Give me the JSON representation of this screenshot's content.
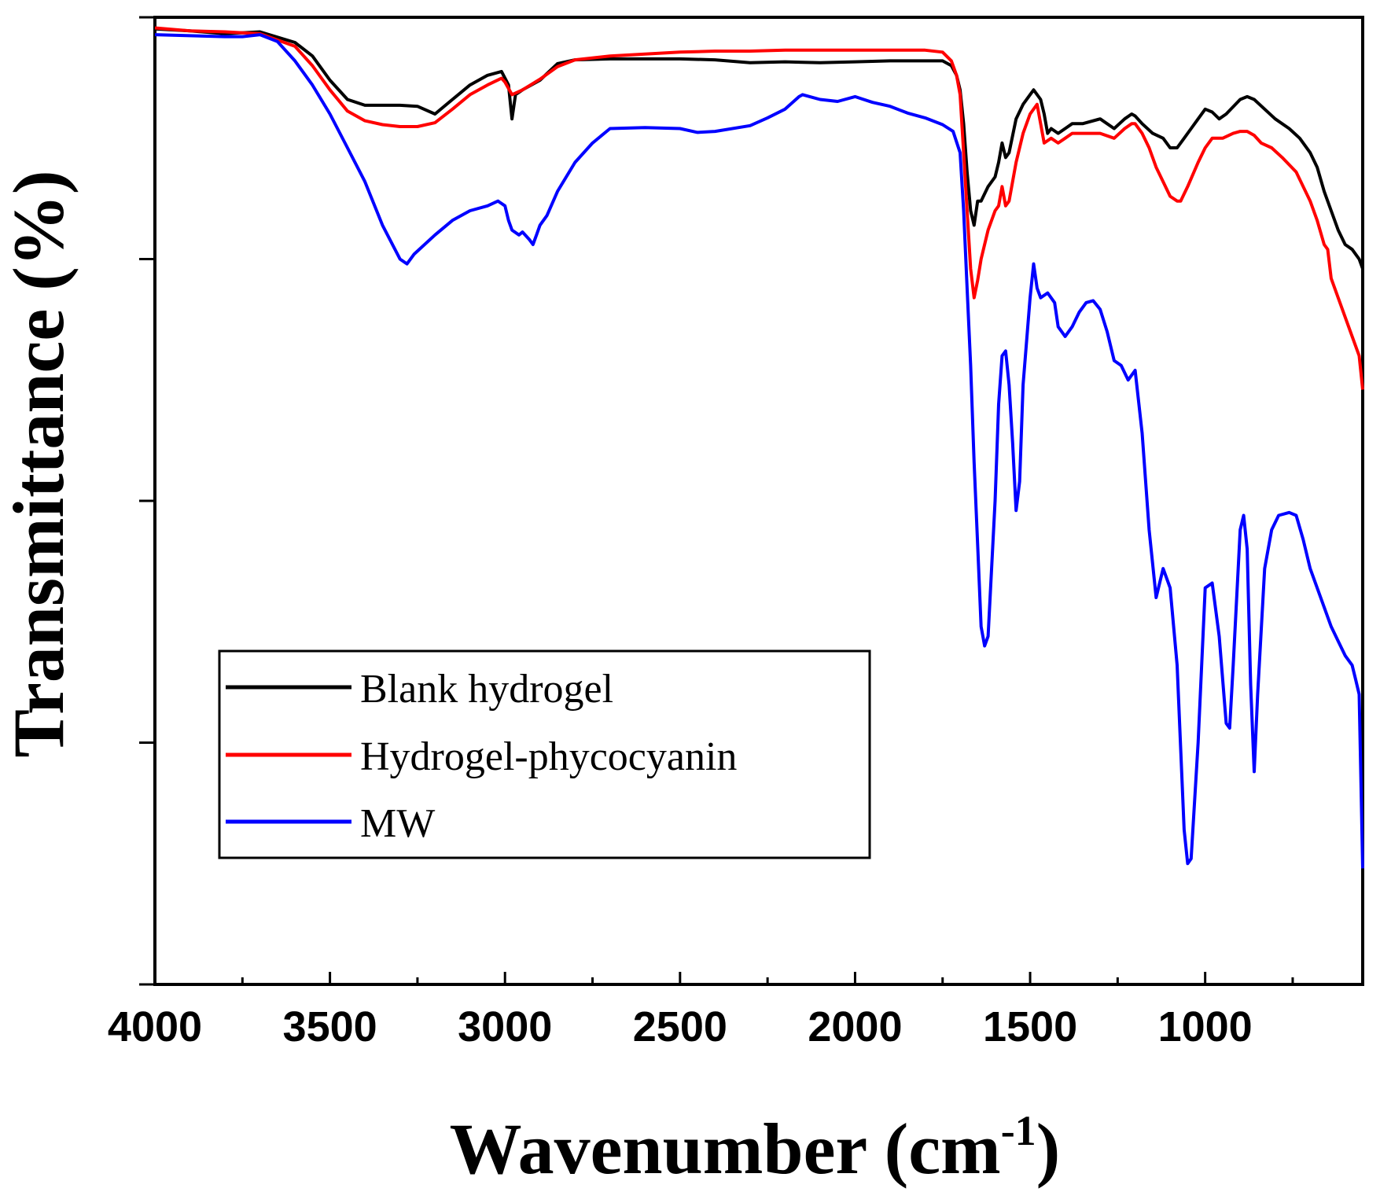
{
  "chart_data": {
    "type": "line",
    "title": "",
    "xlabel": "Wavenumber (cm",
    "xlabel_sup": "-1",
    "xlabel_close": ")",
    "ylabel": "Transmittance (%)",
    "xlim": [
      4000,
      550
    ],
    "ylim": [
      0,
      100
    ],
    "x_reversed": true,
    "x_ticks": [
      4000,
      3500,
      3000,
      2500,
      2000,
      1500,
      1000
    ],
    "x_tick_labels": [
      "4000",
      "3500",
      "3000",
      "2500",
      "2000",
      "1500",
      "1000"
    ],
    "y_ticks": [
      0,
      25,
      50,
      75,
      100
    ],
    "y_tick_labels_shown": false,
    "grid": false,
    "legend_position": "lower-left",
    "series": [
      {
        "name": "Blank hydrogel",
        "color": "#000000",
        "points": [
          [
            4000,
            98.8
          ],
          [
            3900,
            98.6
          ],
          [
            3800,
            98.3
          ],
          [
            3700,
            98.5
          ],
          [
            3600,
            97.4
          ],
          [
            3550,
            96
          ],
          [
            3500,
            93.5
          ],
          [
            3450,
            91.5
          ],
          [
            3400,
            90.9
          ],
          [
            3350,
            90.9
          ],
          [
            3300,
            90.9
          ],
          [
            3250,
            90.8
          ],
          [
            3200,
            90
          ],
          [
            3150,
            91.5
          ],
          [
            3100,
            93
          ],
          [
            3050,
            94
          ],
          [
            3010,
            94.4
          ],
          [
            2990,
            93
          ],
          [
            2980,
            89.5
          ],
          [
            2970,
            92
          ],
          [
            2950,
            92.5
          ],
          [
            2900,
            93.5
          ],
          [
            2850,
            95.2
          ],
          [
            2800,
            95.6
          ],
          [
            2700,
            95.7
          ],
          [
            2600,
            95.7
          ],
          [
            2500,
            95.7
          ],
          [
            2400,
            95.6
          ],
          [
            2300,
            95.3
          ],
          [
            2200,
            95.4
          ],
          [
            2100,
            95.3
          ],
          [
            2000,
            95.4
          ],
          [
            1900,
            95.5
          ],
          [
            1800,
            95.5
          ],
          [
            1750,
            95.5
          ],
          [
            1725,
            95
          ],
          [
            1710,
            94
          ],
          [
            1700,
            92.5
          ],
          [
            1690,
            89
          ],
          [
            1680,
            84
          ],
          [
            1670,
            80
          ],
          [
            1660,
            78.5
          ],
          [
            1650,
            81
          ],
          [
            1640,
            81
          ],
          [
            1620,
            82.5
          ],
          [
            1600,
            83.5
          ],
          [
            1590,
            85
          ],
          [
            1580,
            87
          ],
          [
            1570,
            85.5
          ],
          [
            1560,
            86
          ],
          [
            1540,
            89.5
          ],
          [
            1520,
            91
          ],
          [
            1500,
            92
          ],
          [
            1490,
            92.5
          ],
          [
            1470,
            91.5
          ],
          [
            1460,
            90
          ],
          [
            1450,
            88
          ],
          [
            1440,
            88.5
          ],
          [
            1420,
            88
          ],
          [
            1400,
            88.5
          ],
          [
            1380,
            89
          ],
          [
            1350,
            89
          ],
          [
            1300,
            89.5
          ],
          [
            1260,
            88.5
          ],
          [
            1230,
            89.5
          ],
          [
            1210,
            90
          ],
          [
            1200,
            89.8
          ],
          [
            1180,
            89
          ],
          [
            1150,
            88
          ],
          [
            1120,
            87.5
          ],
          [
            1100,
            86.5
          ],
          [
            1080,
            86.5
          ],
          [
            1060,
            87.5
          ],
          [
            1040,
            88.5
          ],
          [
            1020,
            89.5
          ],
          [
            1000,
            90.5
          ],
          [
            980,
            90.2
          ],
          [
            960,
            89.5
          ],
          [
            940,
            90
          ],
          [
            900,
            91.5
          ],
          [
            880,
            91.8
          ],
          [
            860,
            91.5
          ],
          [
            830,
            90.5
          ],
          [
            800,
            89.5
          ],
          [
            760,
            88.5
          ],
          [
            730,
            87.5
          ],
          [
            700,
            86
          ],
          [
            680,
            84.5
          ],
          [
            660,
            82
          ],
          [
            640,
            80
          ],
          [
            620,
            78
          ],
          [
            600,
            76.5
          ],
          [
            580,
            76
          ],
          [
            560,
            75
          ],
          [
            550,
            74
          ]
        ]
      },
      {
        "name": "Hydrogel-phycocyanin",
        "color": "#ff0000",
        "points": [
          [
            4000,
            98.9
          ],
          [
            3900,
            98.6
          ],
          [
            3800,
            98.5
          ],
          [
            3700,
            98.3
          ],
          [
            3600,
            97
          ],
          [
            3550,
            95
          ],
          [
            3500,
            92.5
          ],
          [
            3450,
            90.3
          ],
          [
            3400,
            89.3
          ],
          [
            3350,
            88.9
          ],
          [
            3300,
            88.7
          ],
          [
            3250,
            88.7
          ],
          [
            3200,
            89.1
          ],
          [
            3150,
            90.5
          ],
          [
            3100,
            92
          ],
          [
            3050,
            93
          ],
          [
            3010,
            93.7
          ],
          [
            3000,
            93.3
          ],
          [
            2980,
            92
          ],
          [
            2950,
            92.5
          ],
          [
            2900,
            93.6
          ],
          [
            2850,
            94.9
          ],
          [
            2800,
            95.6
          ],
          [
            2700,
            96
          ],
          [
            2600,
            96.2
          ],
          [
            2500,
            96.4
          ],
          [
            2400,
            96.5
          ],
          [
            2300,
            96.5
          ],
          [
            2200,
            96.6
          ],
          [
            2100,
            96.6
          ],
          [
            2000,
            96.6
          ],
          [
            1900,
            96.6
          ],
          [
            1800,
            96.6
          ],
          [
            1750,
            96.4
          ],
          [
            1725,
            95.5
          ],
          [
            1710,
            94
          ],
          [
            1700,
            92
          ],
          [
            1690,
            86
          ],
          [
            1680,
            80
          ],
          [
            1670,
            74
          ],
          [
            1660,
            71
          ],
          [
            1650,
            72.8
          ],
          [
            1640,
            75
          ],
          [
            1620,
            78
          ],
          [
            1600,
            80
          ],
          [
            1590,
            80.5
          ],
          [
            1580,
            82.5
          ],
          [
            1570,
            80.5
          ],
          [
            1560,
            81
          ],
          [
            1540,
            85
          ],
          [
            1520,
            88
          ],
          [
            1500,
            90
          ],
          [
            1480,
            91
          ],
          [
            1470,
            89
          ],
          [
            1460,
            87
          ],
          [
            1440,
            87.5
          ],
          [
            1420,
            87
          ],
          [
            1400,
            87.5
          ],
          [
            1380,
            88
          ],
          [
            1350,
            88
          ],
          [
            1300,
            88
          ],
          [
            1260,
            87.5
          ],
          [
            1230,
            88.5
          ],
          [
            1210,
            89
          ],
          [
            1200,
            89
          ],
          [
            1180,
            88
          ],
          [
            1160,
            86.5
          ],
          [
            1140,
            84.5
          ],
          [
            1120,
            83
          ],
          [
            1100,
            81.5
          ],
          [
            1080,
            81
          ],
          [
            1070,
            81
          ],
          [
            1050,
            82.5
          ],
          [
            1020,
            85
          ],
          [
            1000,
            86.5
          ],
          [
            980,
            87.5
          ],
          [
            950,
            87.5
          ],
          [
            920,
            88
          ],
          [
            900,
            88.2
          ],
          [
            880,
            88.2
          ],
          [
            860,
            87.8
          ],
          [
            840,
            87
          ],
          [
            810,
            86.5
          ],
          [
            780,
            85.5
          ],
          [
            740,
            84
          ],
          [
            700,
            81
          ],
          [
            680,
            79
          ],
          [
            660,
            76.5
          ],
          [
            650,
            76
          ],
          [
            640,
            73
          ],
          [
            620,
            71
          ],
          [
            600,
            69
          ],
          [
            580,
            67
          ],
          [
            560,
            65
          ],
          [
            550,
            61.5
          ]
        ]
      },
      {
        "name": "MW",
        "color": "#0000ff",
        "points": [
          [
            4000,
            98.2
          ],
          [
            3900,
            98.1
          ],
          [
            3800,
            98
          ],
          [
            3750,
            98
          ],
          [
            3700,
            98.2
          ],
          [
            3650,
            97.5
          ],
          [
            3600,
            95.5
          ],
          [
            3550,
            93
          ],
          [
            3500,
            90
          ],
          [
            3450,
            86.5
          ],
          [
            3400,
            83
          ],
          [
            3350,
            78.5
          ],
          [
            3300,
            75
          ],
          [
            3280,
            74.5
          ],
          [
            3260,
            75.5
          ],
          [
            3200,
            77.5
          ],
          [
            3150,
            79
          ],
          [
            3100,
            80
          ],
          [
            3050,
            80.5
          ],
          [
            3020,
            81
          ],
          [
            3000,
            80.5
          ],
          [
            2990,
            79
          ],
          [
            2980,
            78
          ],
          [
            2960,
            77.5
          ],
          [
            2950,
            77.8
          ],
          [
            2930,
            77
          ],
          [
            2920,
            76.5
          ],
          [
            2910,
            77.5
          ],
          [
            2900,
            78.5
          ],
          [
            2880,
            79.5
          ],
          [
            2850,
            82
          ],
          [
            2800,
            85
          ],
          [
            2750,
            87
          ],
          [
            2700,
            88.5
          ],
          [
            2600,
            88.6
          ],
          [
            2500,
            88.5
          ],
          [
            2450,
            88.1
          ],
          [
            2400,
            88.2
          ],
          [
            2300,
            88.8
          ],
          [
            2250,
            89.6
          ],
          [
            2200,
            90.5
          ],
          [
            2160,
            91.8
          ],
          [
            2150,
            92
          ],
          [
            2100,
            91.5
          ],
          [
            2050,
            91.3
          ],
          [
            2000,
            91.8
          ],
          [
            1950,
            91.2
          ],
          [
            1900,
            90.8
          ],
          [
            1850,
            90.1
          ],
          [
            1800,
            89.6
          ],
          [
            1750,
            88.9
          ],
          [
            1720,
            88.2
          ],
          [
            1700,
            86
          ],
          [
            1690,
            80
          ],
          [
            1680,
            72
          ],
          [
            1670,
            64
          ],
          [
            1660,
            54
          ],
          [
            1650,
            45.5
          ],
          [
            1640,
            37
          ],
          [
            1630,
            35
          ],
          [
            1620,
            36
          ],
          [
            1600,
            50
          ],
          [
            1590,
            60
          ],
          [
            1580,
            65
          ],
          [
            1570,
            65.5
          ],
          [
            1560,
            62
          ],
          [
            1550,
            56
          ],
          [
            1540,
            49
          ],
          [
            1530,
            52
          ],
          [
            1520,
            62
          ],
          [
            1500,
            71
          ],
          [
            1490,
            74.5
          ],
          [
            1480,
            72
          ],
          [
            1470,
            71
          ],
          [
            1450,
            71.5
          ],
          [
            1430,
            70.5
          ],
          [
            1420,
            68
          ],
          [
            1400,
            67
          ],
          [
            1380,
            68
          ],
          [
            1360,
            69.5
          ],
          [
            1340,
            70.5
          ],
          [
            1320,
            70.7
          ],
          [
            1300,
            69.8
          ],
          [
            1280,
            67.5
          ],
          [
            1260,
            64.5
          ],
          [
            1240,
            64
          ],
          [
            1220,
            62.5
          ],
          [
            1200,
            63.5
          ],
          [
            1180,
            57
          ],
          [
            1160,
            47
          ],
          [
            1140,
            40
          ],
          [
            1120,
            43
          ],
          [
            1100,
            41
          ],
          [
            1080,
            33
          ],
          [
            1060,
            16
          ],
          [
            1050,
            12.5
          ],
          [
            1040,
            13
          ],
          [
            1020,
            25
          ],
          [
            1000,
            41
          ],
          [
            980,
            41.5
          ],
          [
            960,
            36
          ],
          [
            940,
            27
          ],
          [
            930,
            26.5
          ],
          [
            920,
            33
          ],
          [
            900,
            47
          ],
          [
            890,
            48.5
          ],
          [
            880,
            45
          ],
          [
            870,
            31
          ],
          [
            860,
            22
          ],
          [
            850,
            30
          ],
          [
            830,
            43
          ],
          [
            810,
            47
          ],
          [
            790,
            48.5
          ],
          [
            760,
            48.8
          ],
          [
            740,
            48.5
          ],
          [
            720,
            46
          ],
          [
            700,
            43
          ],
          [
            680,
            41
          ],
          [
            660,
            39
          ],
          [
            640,
            37
          ],
          [
            620,
            35.5
          ],
          [
            600,
            34
          ],
          [
            580,
            33
          ],
          [
            570,
            31.5
          ],
          [
            560,
            30
          ],
          [
            550,
            12
          ]
        ]
      }
    ]
  }
}
